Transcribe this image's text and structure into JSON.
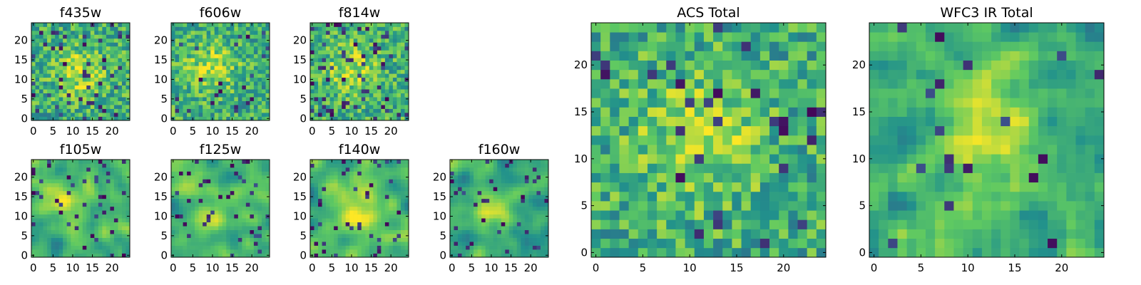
{
  "chart_data": [
    {
      "type": "heatmap",
      "title": "f435w",
      "xticks": [
        "0",
        "5",
        "10",
        "15",
        "20"
      ],
      "yticks": [
        "0",
        "5",
        "10",
        "15",
        "20"
      ],
      "grid_size": 25,
      "xlim": [
        0,
        24
      ],
      "ylim": [
        0,
        24
      ],
      "colormap": "viridis",
      "smoothness": 0,
      "bright_center": [
        12,
        12
      ],
      "dark_pixel_fraction": 0.06
    },
    {
      "type": "heatmap",
      "title": "f606w",
      "xticks": [
        "0",
        "5",
        "10",
        "15",
        "20"
      ],
      "yticks": [
        "0",
        "5",
        "10",
        "15",
        "20"
      ],
      "grid_size": 25,
      "xlim": [
        0,
        24
      ],
      "ylim": [
        0,
        24
      ],
      "colormap": "viridis",
      "smoothness": 0,
      "bright_center": [
        10,
        13
      ],
      "dark_pixel_fraction": 0.04
    },
    {
      "type": "heatmap",
      "title": "f814w",
      "xticks": [
        "0",
        "5",
        "10",
        "15",
        "20"
      ],
      "yticks": [
        "0",
        "5",
        "10",
        "15",
        "20"
      ],
      "grid_size": 25,
      "xlim": [
        0,
        24
      ],
      "ylim": [
        0,
        24
      ],
      "colormap": "viridis",
      "smoothness": 0,
      "bright_center": [
        10,
        13
      ],
      "dark_pixel_fraction": 0.08
    },
    {
      "type": "heatmap",
      "title": "f105w",
      "xticks": [
        "0",
        "5",
        "10",
        "15",
        "20"
      ],
      "yticks": [
        "0",
        "5",
        "10",
        "15",
        "20"
      ],
      "grid_size": 25,
      "xlim": [
        0,
        24
      ],
      "ylim": [
        0,
        24
      ],
      "colormap": "viridis",
      "smoothness": 2,
      "bright_center": [
        9,
        13
      ],
      "dark_pixel_fraction": 0.05
    },
    {
      "type": "heatmap",
      "title": "f125w",
      "xticks": [
        "0",
        "5",
        "10",
        "15",
        "20"
      ],
      "yticks": [
        "0",
        "5",
        "10",
        "15",
        "20"
      ],
      "grid_size": 25,
      "xlim": [
        0,
        24
      ],
      "ylim": [
        0,
        24
      ],
      "colormap": "viridis",
      "smoothness": 2,
      "bright_center": [
        10,
        11
      ],
      "dark_pixel_fraction": 0.05
    },
    {
      "type": "heatmap",
      "title": "f140w",
      "xticks": [
        "0",
        "5",
        "10",
        "15",
        "20"
      ],
      "yticks": [
        "0",
        "5",
        "10",
        "15",
        "20"
      ],
      "grid_size": 25,
      "xlim": [
        0,
        24
      ],
      "ylim": [
        0,
        24
      ],
      "colormap": "viridis",
      "smoothness": 2,
      "bright_center": [
        12,
        11
      ],
      "dark_pixel_fraction": 0.06
    },
    {
      "type": "heatmap",
      "title": "f160w",
      "xticks": [
        "0",
        "5",
        "10",
        "15",
        "20"
      ],
      "yticks": [
        "0",
        "5",
        "10",
        "15",
        "20"
      ],
      "grid_size": 25,
      "xlim": [
        0,
        24
      ],
      "ylim": [
        0,
        24
      ],
      "colormap": "viridis",
      "smoothness": 2,
      "bright_center": [
        11,
        12
      ],
      "dark_pixel_fraction": 0.06
    },
    {
      "type": "heatmap",
      "title": "ACS Total",
      "xticks": [
        "0",
        "5",
        "10",
        "15",
        "20"
      ],
      "yticks": [
        "0",
        "5",
        "10",
        "15",
        "20"
      ],
      "grid_size": 25,
      "xlim": [
        0,
        24
      ],
      "ylim": [
        0,
        24
      ],
      "colormap": "viridis",
      "smoothness": 0,
      "bright_center": [
        11,
        12
      ],
      "dark_pixel_fraction": 0.04
    },
    {
      "type": "heatmap",
      "title": "WFC3 IR Total",
      "xticks": [
        "0",
        "5",
        "10",
        "15",
        "20"
      ],
      "yticks": [
        "0",
        "5",
        "10",
        "15",
        "20"
      ],
      "grid_size": 25,
      "xlim": [
        0,
        24
      ],
      "ylim": [
        0,
        24
      ],
      "colormap": "viridis",
      "smoothness": 1,
      "bright_center": [
        12,
        13
      ],
      "dark_pixel_fraction": 0.03
    }
  ],
  "colors": {
    "viridis": [
      "#440154",
      "#3b528b",
      "#21918c",
      "#5ec962",
      "#fde725"
    ],
    "axes_frame": "#000000",
    "background": "#ffffff"
  }
}
